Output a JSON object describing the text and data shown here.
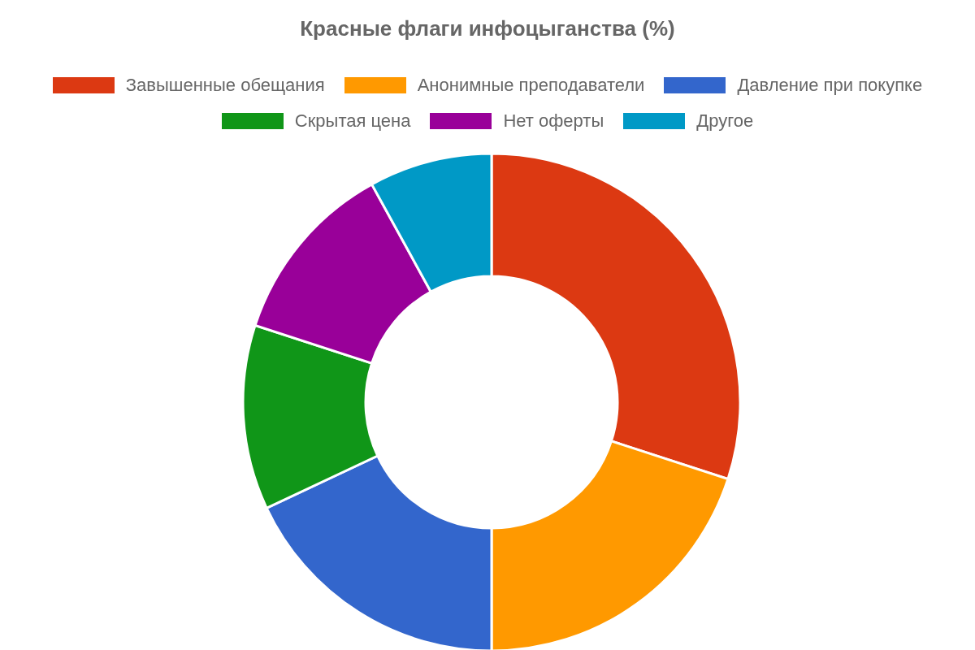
{
  "chart_data": {
    "type": "donut",
    "title": "Красные флаги инфоцыганства (%)",
    "categories": [
      "Завышенные обещания",
      "Анонимные преподаватели",
      "Давление при покупке",
      "Скрытая цена",
      "Нет оферты",
      "Другое"
    ],
    "values": [
      30,
      20,
      18,
      12,
      12,
      8
    ],
    "colors": [
      "#dc3912",
      "#ff9900",
      "#3366cc",
      "#109618",
      "#990099",
      "#0099c6"
    ],
    "legend": "top"
  }
}
